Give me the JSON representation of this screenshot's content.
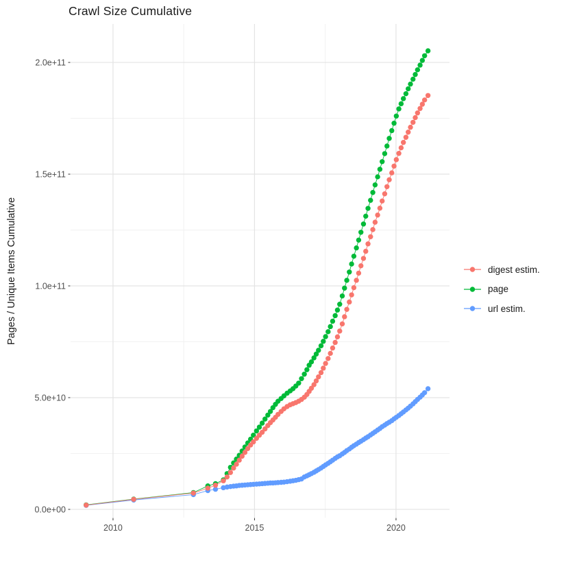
{
  "chart_data": {
    "type": "scatter",
    "title": "Crawl Size Cumulative",
    "xlabel": "",
    "ylabel": "Pages / Unique Items Cumulative",
    "values_unit": "1e10",
    "xlim": [
      2008.5,
      2021.89
    ],
    "ylim": [
      -0.37,
      21.72
    ],
    "grid": true,
    "legend_position": "right",
    "x_ticks": [
      {
        "value": 2010,
        "label": "2010"
      },
      {
        "value": 2015,
        "label": "2015"
      },
      {
        "value": 2020,
        "label": "2020"
      }
    ],
    "x_minor_ticks": [
      2012.5,
      2017.5
    ],
    "y_ticks": [
      {
        "value": 0,
        "label": "0.0e+00"
      },
      {
        "value": 5,
        "label": "5.0e+10"
      },
      {
        "value": 10,
        "label": "1.0e+11"
      },
      {
        "value": 15,
        "label": "1.5e+11"
      },
      {
        "value": 20,
        "label": "2.0e+11"
      }
    ],
    "y_minor_ticks": [
      2.5,
      7.5,
      12.5,
      17.5
    ],
    "draw_order": [
      2,
      1,
      0
    ],
    "series": [
      {
        "name": "digest estim.",
        "color": "#F8766D",
        "points": [
          [
            2009.05,
            0.19
          ],
          [
            2010.73,
            0.45
          ],
          [
            2012.84,
            0.73
          ],
          [
            2013.35,
            0.95
          ],
          [
            2013.62,
            1.08
          ],
          [
            2013.9,
            1.28
          ],
          [
            2014.03,
            1.45
          ],
          [
            2014.15,
            1.65
          ],
          [
            2014.26,
            1.85
          ],
          [
            2014.36,
            2.02
          ],
          [
            2014.46,
            2.2
          ],
          [
            2014.56,
            2.38
          ],
          [
            2014.66,
            2.55
          ],
          [
            2014.76,
            2.72
          ],
          [
            2014.86,
            2.88
          ],
          [
            2014.96,
            3.02
          ],
          [
            2015.07,
            3.18
          ],
          [
            2015.17,
            3.32
          ],
          [
            2015.27,
            3.45
          ],
          [
            2015.37,
            3.6
          ],
          [
            2015.47,
            3.75
          ],
          [
            2015.56,
            3.88
          ],
          [
            2015.65,
            4.0
          ],
          [
            2015.74,
            4.12
          ],
          [
            2015.83,
            4.25
          ],
          [
            2015.94,
            4.38
          ],
          [
            2016.04,
            4.5
          ],
          [
            2016.15,
            4.6
          ],
          [
            2016.26,
            4.68
          ],
          [
            2016.36,
            4.73
          ],
          [
            2016.46,
            4.78
          ],
          [
            2016.56,
            4.84
          ],
          [
            2016.66,
            4.92
          ],
          [
            2016.76,
            5.02
          ],
          [
            2016.85,
            5.14
          ],
          [
            2016.93,
            5.28
          ],
          [
            2017.01,
            5.42
          ],
          [
            2017.1,
            5.58
          ],
          [
            2017.18,
            5.75
          ],
          [
            2017.26,
            5.93
          ],
          [
            2017.35,
            6.12
          ],
          [
            2017.43,
            6.32
          ],
          [
            2017.51,
            6.53
          ],
          [
            2017.6,
            6.75
          ],
          [
            2017.68,
            6.98
          ],
          [
            2017.76,
            7.22
          ],
          [
            2017.85,
            7.47
          ],
          [
            2017.93,
            7.72
          ],
          [
            2018.01,
            7.98
          ],
          [
            2018.1,
            8.3
          ],
          [
            2018.18,
            8.62
          ],
          [
            2018.26,
            8.95
          ],
          [
            2018.35,
            9.28
          ],
          [
            2018.43,
            9.6
          ],
          [
            2018.51,
            9.92
          ],
          [
            2018.6,
            10.25
          ],
          [
            2018.68,
            10.57
          ],
          [
            2018.76,
            10.9
          ],
          [
            2018.85,
            11.23
          ],
          [
            2018.93,
            11.55
          ],
          [
            2019.01,
            11.88
          ],
          [
            2019.1,
            12.2
          ],
          [
            2019.18,
            12.52
          ],
          [
            2019.26,
            12.85
          ],
          [
            2019.35,
            13.17
          ],
          [
            2019.43,
            13.48
          ],
          [
            2019.51,
            13.8
          ],
          [
            2019.6,
            14.12
          ],
          [
            2019.68,
            14.44
          ],
          [
            2019.76,
            14.75
          ],
          [
            2019.85,
            15.06
          ],
          [
            2019.93,
            15.36
          ],
          [
            2020.01,
            15.65
          ],
          [
            2020.1,
            15.93
          ],
          [
            2020.18,
            16.18
          ],
          [
            2020.26,
            16.42
          ],
          [
            2020.35,
            16.65
          ],
          [
            2020.43,
            16.88
          ],
          [
            2020.51,
            17.1
          ],
          [
            2020.6,
            17.32
          ],
          [
            2020.68,
            17.53
          ],
          [
            2020.76,
            17.74
          ],
          [
            2020.85,
            17.94
          ],
          [
            2020.93,
            18.13
          ],
          [
            2021.01,
            18.32
          ],
          [
            2021.13,
            18.52
          ]
        ]
      },
      {
        "name": "page",
        "color": "#00BA38",
        "points": [
          [
            2009.05,
            0.2
          ],
          [
            2010.73,
            0.46
          ],
          [
            2012.84,
            0.75
          ],
          [
            2013.35,
            1.05
          ],
          [
            2013.62,
            1.15
          ],
          [
            2013.9,
            1.32
          ],
          [
            2014.03,
            1.6
          ],
          [
            2014.15,
            1.88
          ],
          [
            2014.26,
            2.08
          ],
          [
            2014.36,
            2.25
          ],
          [
            2014.46,
            2.42
          ],
          [
            2014.56,
            2.61
          ],
          [
            2014.66,
            2.79
          ],
          [
            2014.76,
            2.97
          ],
          [
            2014.86,
            3.14
          ],
          [
            2014.96,
            3.32
          ],
          [
            2015.07,
            3.51
          ],
          [
            2015.17,
            3.68
          ],
          [
            2015.27,
            3.86
          ],
          [
            2015.37,
            4.04
          ],
          [
            2015.47,
            4.22
          ],
          [
            2015.56,
            4.38
          ],
          [
            2015.65,
            4.55
          ],
          [
            2015.74,
            4.7
          ],
          [
            2015.83,
            4.84
          ],
          [
            2015.94,
            4.96
          ],
          [
            2016.04,
            5.08
          ],
          [
            2016.15,
            5.2
          ],
          [
            2016.26,
            5.3
          ],
          [
            2016.36,
            5.4
          ],
          [
            2016.46,
            5.52
          ],
          [
            2016.56,
            5.65
          ],
          [
            2016.66,
            5.85
          ],
          [
            2016.76,
            6.05
          ],
          [
            2016.85,
            6.25
          ],
          [
            2016.93,
            6.45
          ],
          [
            2017.01,
            6.6
          ],
          [
            2017.1,
            6.78
          ],
          [
            2017.18,
            6.95
          ],
          [
            2017.26,
            7.12
          ],
          [
            2017.35,
            7.32
          ],
          [
            2017.43,
            7.52
          ],
          [
            2017.51,
            7.73
          ],
          [
            2017.6,
            7.95
          ],
          [
            2017.68,
            8.18
          ],
          [
            2017.76,
            8.42
          ],
          [
            2017.85,
            8.67
          ],
          [
            2017.93,
            8.92
          ],
          [
            2018.01,
            9.18
          ],
          [
            2018.1,
            9.55
          ],
          [
            2018.18,
            9.9
          ],
          [
            2018.26,
            10.25
          ],
          [
            2018.35,
            10.62
          ],
          [
            2018.43,
            10.98
          ],
          [
            2018.51,
            11.33
          ],
          [
            2018.6,
            11.7
          ],
          [
            2018.68,
            12.05
          ],
          [
            2018.76,
            12.4
          ],
          [
            2018.85,
            12.77
          ],
          [
            2018.93,
            13.12
          ],
          [
            2019.01,
            13.47
          ],
          [
            2019.1,
            13.83
          ],
          [
            2019.18,
            14.18
          ],
          [
            2019.26,
            14.52
          ],
          [
            2019.35,
            14.88
          ],
          [
            2019.43,
            15.22
          ],
          [
            2019.51,
            15.56
          ],
          [
            2019.6,
            15.92
          ],
          [
            2019.68,
            16.26
          ],
          [
            2019.76,
            16.6
          ],
          [
            2019.85,
            16.95
          ],
          [
            2019.93,
            17.28
          ],
          [
            2020.01,
            17.6
          ],
          [
            2020.1,
            17.92
          ],
          [
            2020.18,
            18.15
          ],
          [
            2020.26,
            18.38
          ],
          [
            2020.35,
            18.6
          ],
          [
            2020.43,
            18.82
          ],
          [
            2020.51,
            19.03
          ],
          [
            2020.6,
            19.25
          ],
          [
            2020.68,
            19.46
          ],
          [
            2020.76,
            19.67
          ],
          [
            2020.85,
            19.88
          ],
          [
            2020.93,
            20.09
          ],
          [
            2021.01,
            20.3
          ],
          [
            2021.13,
            20.52
          ]
        ]
      },
      {
        "name": "url estim.",
        "color": "#619CFF",
        "points": [
          [
            2009.05,
            0.18
          ],
          [
            2010.73,
            0.42
          ],
          [
            2012.84,
            0.66
          ],
          [
            2013.35,
            0.84
          ],
          [
            2013.62,
            0.9
          ],
          [
            2013.9,
            0.97
          ],
          [
            2014.03,
            1.0
          ],
          [
            2014.15,
            1.02
          ],
          [
            2014.26,
            1.04
          ],
          [
            2014.36,
            1.05
          ],
          [
            2014.46,
            1.07
          ],
          [
            2014.56,
            1.08
          ],
          [
            2014.66,
            1.09
          ],
          [
            2014.76,
            1.1
          ],
          [
            2014.86,
            1.11
          ],
          [
            2014.96,
            1.12
          ],
          [
            2015.07,
            1.13
          ],
          [
            2015.17,
            1.14
          ],
          [
            2015.27,
            1.15
          ],
          [
            2015.37,
            1.16
          ],
          [
            2015.47,
            1.17
          ],
          [
            2015.56,
            1.18
          ],
          [
            2015.65,
            1.18
          ],
          [
            2015.74,
            1.19
          ],
          [
            2015.83,
            1.2
          ],
          [
            2015.94,
            1.21
          ],
          [
            2016.04,
            1.22
          ],
          [
            2016.15,
            1.24
          ],
          [
            2016.26,
            1.26
          ],
          [
            2016.36,
            1.28
          ],
          [
            2016.46,
            1.3
          ],
          [
            2016.56,
            1.33
          ],
          [
            2016.66,
            1.36
          ],
          [
            2016.76,
            1.45
          ],
          [
            2016.85,
            1.5
          ],
          [
            2016.93,
            1.55
          ],
          [
            2017.01,
            1.6
          ],
          [
            2017.1,
            1.66
          ],
          [
            2017.18,
            1.72
          ],
          [
            2017.26,
            1.78
          ],
          [
            2017.35,
            1.85
          ],
          [
            2017.43,
            1.92
          ],
          [
            2017.51,
            1.99
          ],
          [
            2017.6,
            2.06
          ],
          [
            2017.68,
            2.13
          ],
          [
            2017.76,
            2.2
          ],
          [
            2017.85,
            2.28
          ],
          [
            2017.93,
            2.35
          ],
          [
            2018.01,
            2.4
          ],
          [
            2018.1,
            2.48
          ],
          [
            2018.18,
            2.55
          ],
          [
            2018.26,
            2.63
          ],
          [
            2018.35,
            2.7
          ],
          [
            2018.43,
            2.78
          ],
          [
            2018.51,
            2.85
          ],
          [
            2018.6,
            2.92
          ],
          [
            2018.68,
            2.99
          ],
          [
            2018.76,
            3.05
          ],
          [
            2018.85,
            3.12
          ],
          [
            2018.93,
            3.19
          ],
          [
            2019.01,
            3.25
          ],
          [
            2019.1,
            3.33
          ],
          [
            2019.18,
            3.4
          ],
          [
            2019.26,
            3.47
          ],
          [
            2019.35,
            3.55
          ],
          [
            2019.43,
            3.62
          ],
          [
            2019.51,
            3.7
          ],
          [
            2019.6,
            3.77
          ],
          [
            2019.68,
            3.84
          ],
          [
            2019.76,
            3.9
          ],
          [
            2019.85,
            3.97
          ],
          [
            2019.93,
            4.05
          ],
          [
            2020.01,
            4.12
          ],
          [
            2020.1,
            4.2
          ],
          [
            2020.18,
            4.28
          ],
          [
            2020.26,
            4.36
          ],
          [
            2020.35,
            4.45
          ],
          [
            2020.43,
            4.53
          ],
          [
            2020.51,
            4.62
          ],
          [
            2020.6,
            4.72
          ],
          [
            2020.68,
            4.82
          ],
          [
            2020.76,
            4.92
          ],
          [
            2020.85,
            5.02
          ],
          [
            2020.93,
            5.12
          ],
          [
            2021.01,
            5.22
          ],
          [
            2021.13,
            5.4
          ]
        ]
      }
    ],
    "colors": {
      "grid_major": "#E3E3E3",
      "grid_minor": "#F1F1F1",
      "tick_mark": "#333333",
      "tick_label": "#4D4D4D",
      "title_text": "#1A1A1A",
      "background": "#FFFFFF"
    }
  }
}
